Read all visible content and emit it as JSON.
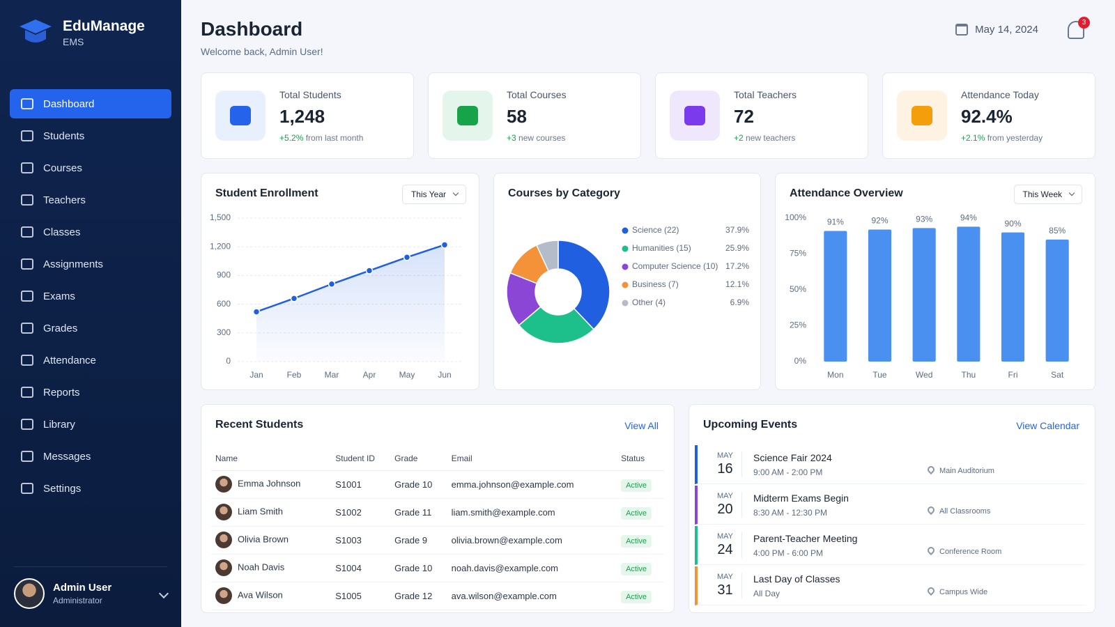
{
  "sidebar": {
    "brand": "EduManage",
    "brand_sub": "EMS",
    "nav": [
      "Dashboard",
      "Students",
      "Courses",
      "Teachers",
      "Classes",
      "Assignments",
      "Exams",
      "Grades",
      "Attendance",
      "Reports",
      "Library",
      "Messages",
      "Settings"
    ],
    "user": {
      "name": "Admin User",
      "role": "Administrator"
    }
  },
  "header": {
    "title": "Dashboard",
    "subtitle": "Welcome back, Admin User!",
    "date": "May 14, 2024",
    "notifications": "3"
  },
  "stats": [
    {
      "label": "Total Students",
      "value": "1,248",
      "change": "+5.2%",
      "note": "from last month",
      "color": "#2563eb",
      "bg": "#e8f0fe"
    },
    {
      "label": "Total Courses",
      "value": "58",
      "change": "+3",
      "note": "new courses",
      "color": "#16a34a",
      "bg": "#e4f6ec"
    },
    {
      "label": "Total Teachers",
      "value": "72",
      "change": "+2",
      "note": "new teachers",
      "color": "#7c3aed",
      "bg": "#efe8fd"
    },
    {
      "label": "Attendance Today",
      "value": "92.4%",
      "change": "+2.1%",
      "note": "from yesterday",
      "color": "#f59e0b",
      "bg": "#fef3e2"
    }
  ],
  "enrollment": {
    "type": "line",
    "title": "Student Enrollment",
    "filter": "This Year",
    "categories": [
      "Jan",
      "Feb",
      "Mar",
      "Apr",
      "May",
      "Jun"
    ],
    "values": [
      520,
      660,
      810,
      950,
      1090,
      1220
    ],
    "ylim": [
      0,
      1500
    ],
    "yticks": [
      0,
      300,
      600,
      900,
      {
        "value": 1200,
        "label": "1,200"
      },
      {
        "value": 1500,
        "label": "1,500"
      }
    ],
    "color": "#1f5fe0",
    "grid": true
  },
  "courses": {
    "type": "donut",
    "title": "Courses by Category",
    "categories": [
      "Science (22)",
      "Humanities (15)",
      "Computer Science (10)",
      "Business (7)",
      "Other (4)"
    ],
    "values": [
      37.9,
      25.9,
      17.2,
      12.1,
      6.9
    ],
    "value_labels": [
      "37.9%",
      "25.9%",
      "17.2%",
      "12.1%",
      "6.9%"
    ],
    "colors": [
      "#1f5fe0",
      "#1dbf8a",
      "#8b46d6",
      "#f4923a",
      "#b3bcc8"
    ]
  },
  "attendance": {
    "type": "bar",
    "title": "Attendance Overview",
    "filter": "This Week",
    "categories": [
      "Mon",
      "Tue",
      "Wed",
      "Thu",
      "Fri",
      "Sat"
    ],
    "values": [
      91,
      92,
      93,
      94,
      90,
      85
    ],
    "value_labels": [
      "91%",
      "92%",
      "93%",
      "94%",
      "90%",
      "85%"
    ],
    "ylim": [
      0,
      100
    ],
    "yticks": [
      {
        "value": 0,
        "label": "0%"
      },
      {
        "value": 25,
        "label": "25%"
      },
      {
        "value": 50,
        "label": "50%"
      },
      {
        "value": 75,
        "label": "75%"
      },
      {
        "value": 100,
        "label": "100%"
      }
    ],
    "color": "#4a90f0",
    "grid": false
  },
  "students": {
    "title": "Recent Students",
    "link": "View All",
    "columns": [
      "Name",
      "Student ID",
      "Grade",
      "Email",
      "Status"
    ],
    "rows": [
      [
        "Emma Johnson",
        "S1001",
        "Grade 10",
        "emma.johnson@example.com",
        "Active"
      ],
      [
        "Liam Smith",
        "S1002",
        "Grade 11",
        "liam.smith@example.com",
        "Active"
      ],
      [
        "Olivia Brown",
        "S1003",
        "Grade 9",
        "olivia.brown@example.com",
        "Active"
      ],
      [
        "Noah Davis",
        "S1004",
        "Grade 10",
        "noah.davis@example.com",
        "Active"
      ],
      [
        "Ava Wilson",
        "S1005",
        "Grade 12",
        "ava.wilson@example.com",
        "Active"
      ]
    ]
  },
  "events": {
    "title": "Upcoming Events",
    "link": "View Calendar",
    "items": [
      {
        "month": "MAY",
        "day": "16",
        "title": "Science Fair 2024",
        "time": "9:00 AM - 2:00 PM",
        "location": "Main Auditorium",
        "color": "#1f5fe0"
      },
      {
        "month": "MAY",
        "day": "20",
        "title": "Midterm Exams Begin",
        "time": "8:30 AM - 12:30 PM",
        "location": "All Classrooms",
        "color": "#8b46d6"
      },
      {
        "month": "MAY",
        "day": "24",
        "title": "Parent-Teacher Meeting",
        "time": "4:00 PM - 6:00 PM",
        "location": "Conference Room",
        "color": "#1dbf8a"
      },
      {
        "month": "MAY",
        "day": "31",
        "title": "Last Day of Classes",
        "time": "All Day",
        "location": "Campus Wide",
        "color": "#f4923a"
      }
    ]
  }
}
